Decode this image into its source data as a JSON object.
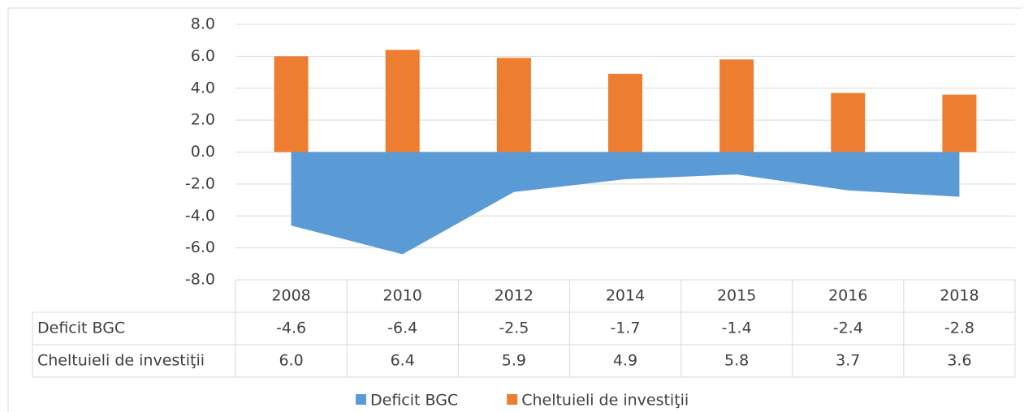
{
  "chart_data": {
    "type": "bar-area",
    "categories": [
      "2008",
      "2010",
      "2012",
      "2014",
      "2015",
      "2016",
      "2018"
    ],
    "series": [
      {
        "name": "Deficit BGC",
        "color": "#5b9bd5",
        "kind": "area",
        "values": [
          -4.6,
          -6.4,
          -2.5,
          -1.7,
          -1.4,
          -2.4,
          -2.8
        ]
      },
      {
        "name": "Cheltuieli de investiţii",
        "color": "#ed7d31",
        "kind": "bar",
        "values": [
          6.0,
          6.4,
          5.9,
          4.9,
          5.8,
          3.7,
          3.6
        ],
        "value_labels": [
          "6.0",
          "6.4",
          "5.9",
          "4.9",
          "5.8",
          "3.7",
          "3.6"
        ]
      }
    ],
    "ylim": [
      -8,
      8
    ],
    "yticks": [
      {
        "value": -8,
        "label": "-8.0"
      },
      {
        "value": -6,
        "label": "-6.0"
      },
      {
        "value": -4,
        "label": "-4.0"
      },
      {
        "value": -2,
        "label": "-2.0"
      },
      {
        "value": 0,
        "label": "0.0"
      },
      {
        "value": 2,
        "label": "2.0"
      },
      {
        "value": 4,
        "label": "4.0"
      },
      {
        "value": 6,
        "label": "6.0"
      },
      {
        "value": 8,
        "label": "8.0"
      }
    ],
    "grid": true,
    "legend": "bottom",
    "data_table": true
  }
}
